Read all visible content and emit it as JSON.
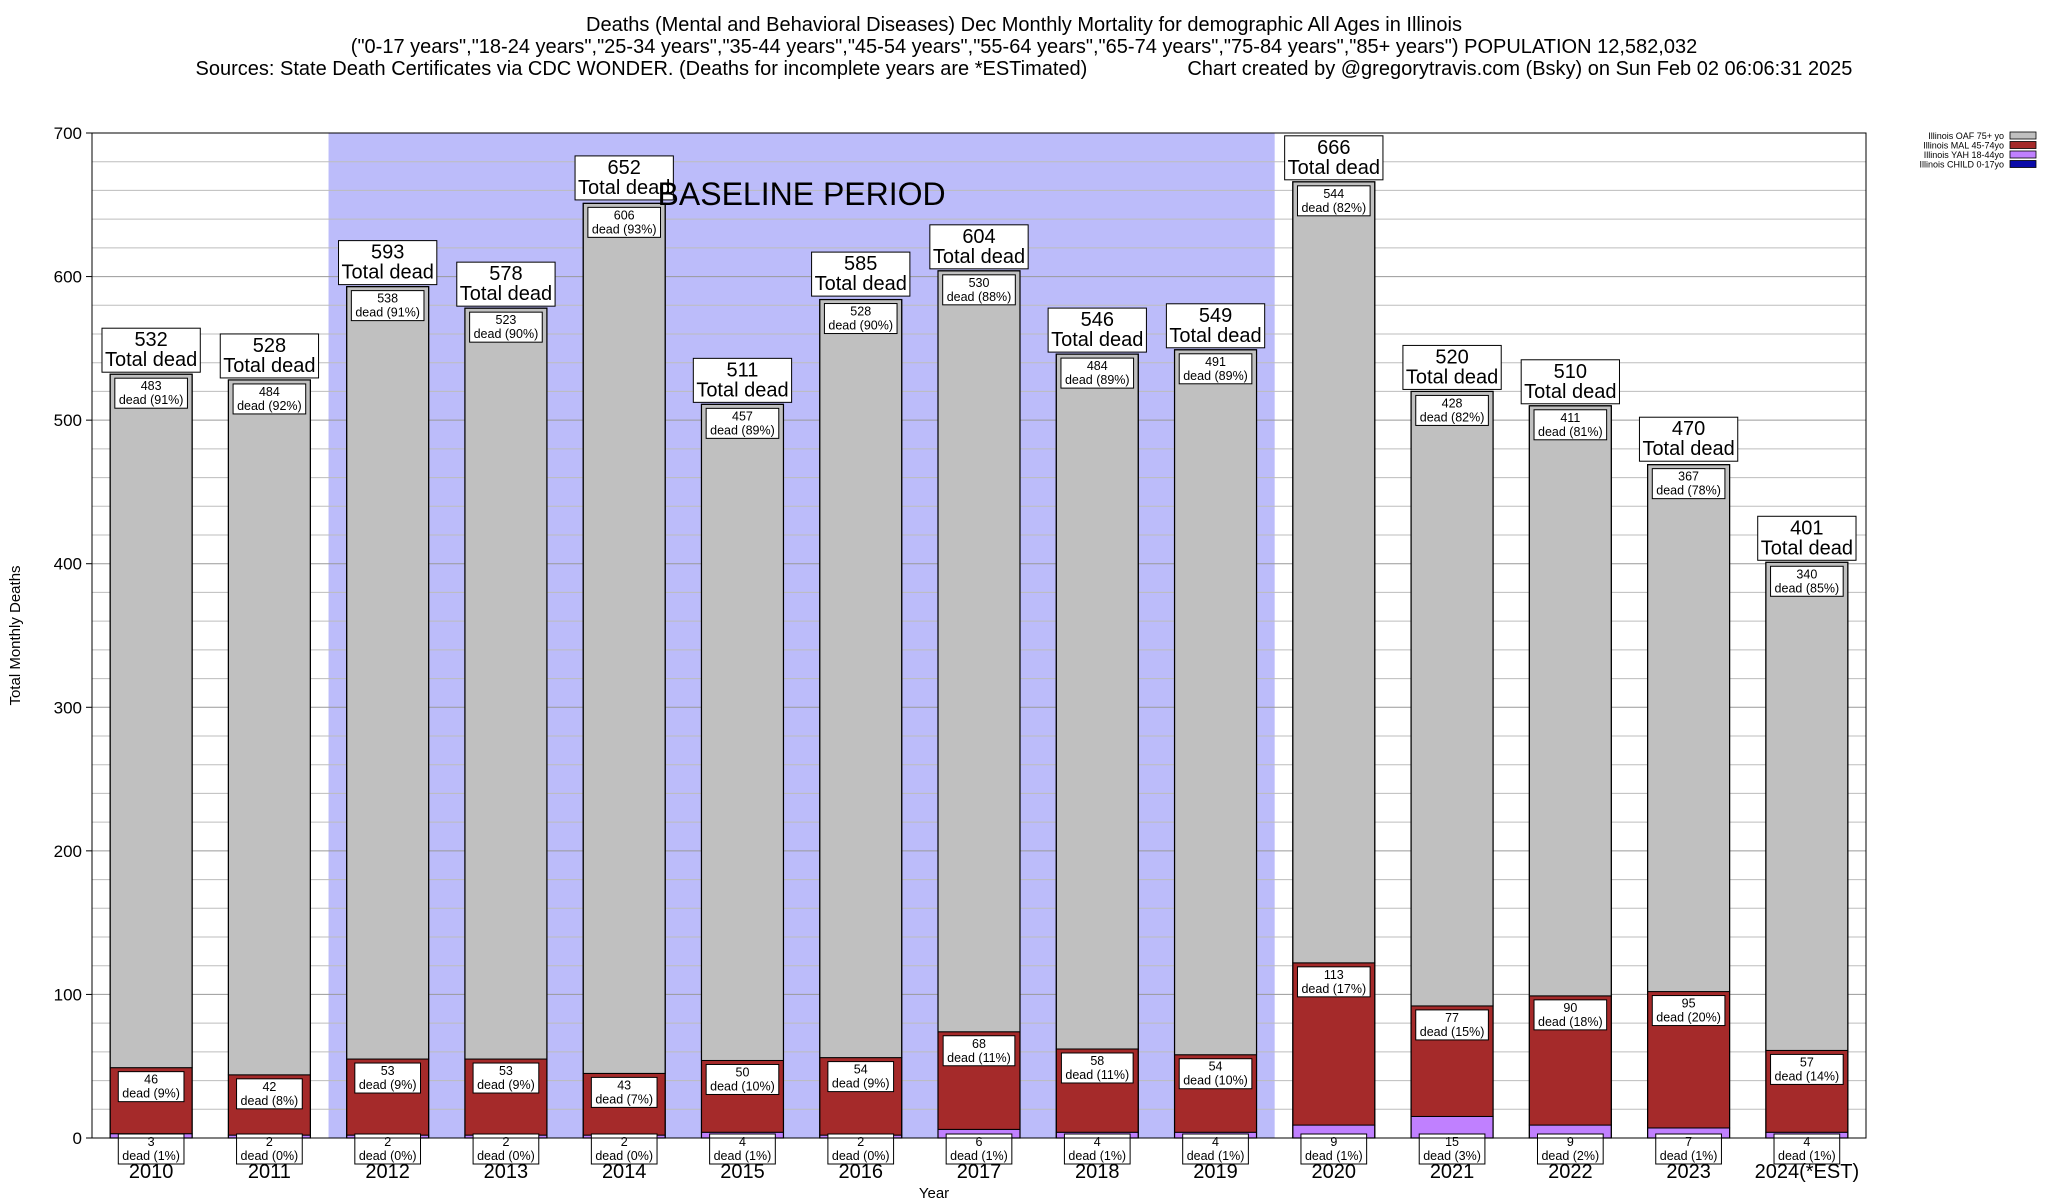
{
  "title": "Deaths (Mental and Behavioral Diseases) Dec Monthly Mortality for demographic All Ages in Illinois",
  "subtitle": "(\"0-17 years\",\"18-24 years\",\"25-34 years\",\"35-44 years\",\"45-54 years\",\"55-64 years\",\"65-74 years\",\"75-84 years\",\"85+ years\") POPULATION 12,582,032",
  "sources": "Sources: State Death Certificates via CDC WONDER. (Deaths for incomplete years are *ESTimated)",
  "credit": "Chart created by @gregorytravis.com (Bsky) on Sun Feb 02 06:06:31 2025",
  "chart_data": {
    "type": "bar",
    "stacked": true,
    "xlabel": "Year",
    "ylabel": "Total Monthly Deaths",
    "ylim": [
      0,
      700
    ],
    "yticks": [
      0,
      100,
      200,
      300,
      400,
      500,
      600,
      700
    ],
    "grid": true,
    "legend_position": "top-right",
    "annotation": "BASELINE PERIOD",
    "baseline_period": [
      "2012",
      "2019"
    ],
    "total_label_suffix": "Total dead",
    "categories": [
      "2010",
      "2011",
      "2012",
      "2013",
      "2014",
      "2015",
      "2016",
      "2017",
      "2018",
      "2019",
      "2020",
      "2021",
      "2022",
      "2023",
      "2024(*EST)"
    ],
    "totals": [
      532,
      528,
      593,
      578,
      652,
      511,
      585,
      604,
      546,
      549,
      666,
      520,
      510,
      470,
      401
    ],
    "series": [
      {
        "name": "Illinois CHILD 0-17yo",
        "color": "#0a0aa8",
        "values": [
          0,
          0,
          0,
          0,
          0,
          0,
          0,
          0,
          0,
          0,
          0,
          0,
          0,
          0,
          0
        ],
        "labels": []
      },
      {
        "name": "Illinois YAH 18-44yo",
        "color": "#c080ff",
        "values": [
          3,
          2,
          2,
          2,
          2,
          4,
          2,
          6,
          4,
          4,
          9,
          15,
          9,
          7,
          4
        ],
        "labels": [
          "dead (1%)",
          "dead (0%)",
          "dead (0%)",
          "dead (0%)",
          "dead (0%)",
          "dead (1%)",
          "dead (0%)",
          "dead (1%)",
          "dead (1%)",
          "dead (1%)",
          "dead (1%)",
          "dead (3%)",
          "dead (2%)",
          "dead (1%)",
          "dead (1%)"
        ]
      },
      {
        "name": "Illinois MAL 45-74yo",
        "color": "#a52a2a",
        "values": [
          46,
          42,
          53,
          53,
          43,
          50,
          54,
          68,
          58,
          54,
          113,
          77,
          90,
          95,
          57
        ],
        "labels": [
          "dead (9%)",
          "dead (8%)",
          "dead (9%)",
          "dead (9%)",
          "dead (7%)",
          "dead (10%)",
          "dead (9%)",
          "dead (11%)",
          "dead (11%)",
          "dead (10%)",
          "dead (17%)",
          "dead (15%)",
          "dead (18%)",
          "dead (20%)",
          "dead (14%)"
        ]
      },
      {
        "name": "Illinois OAF 75+ yo",
        "color": "#c0c0c0",
        "values": [
          483,
          484,
          538,
          523,
          606,
          457,
          528,
          530,
          484,
          491,
          544,
          428,
          411,
          367,
          340
        ],
        "labels": [
          "dead (91%)",
          "dead (92%)",
          "dead (91%)",
          "dead (90%)",
          "dead (93%)",
          "dead (89%)",
          "dead (90%)",
          "dead (88%)",
          "dead (89%)",
          "dead (89%)",
          "dead (82%)",
          "dead (82%)",
          "dead (81%)",
          "dead (78%)",
          "dead (85%)"
        ]
      }
    ],
    "legend_order": [
      "Illinois OAF 75+ yo",
      "Illinois MAL 45-74yo",
      "Illinois YAH 18-44yo",
      "Illinois CHILD 0-17yo"
    ]
  }
}
